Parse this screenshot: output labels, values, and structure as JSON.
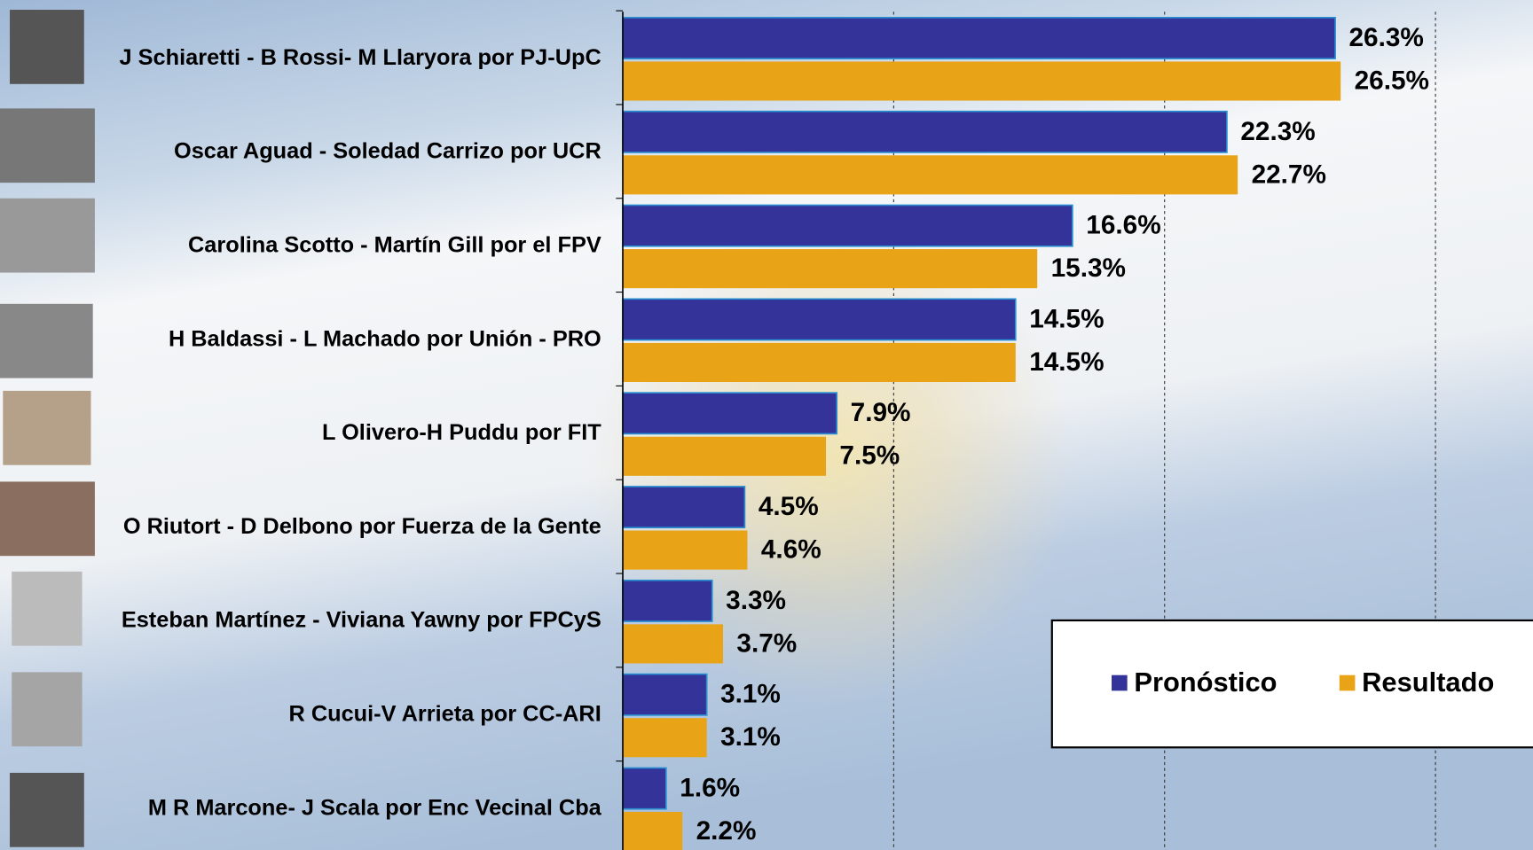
{
  "chart_data": {
    "type": "bar",
    "orientation": "horizontal",
    "categories": [
      "J Schiaretti - B Rossi- M Llaryora por PJ-UpC",
      "Oscar Aguad - Soledad Carrizo por UCR",
      "Carolina Scotto -  Martín Gill por el FPV",
      "H Baldassi - L Machado por Unión - PRO",
      "L Olivero-H Puddu por FIT",
      "O Riutort - D Delbono por Fuerza de la Gente",
      "Esteban Martínez - Viviana Yawny por FPCyS",
      "R Cucui-V Arrieta por CC-ARI",
      "M R Marcone- J Scala por Enc Vecinal Cba"
    ],
    "series": [
      {
        "name": "Pronóstico",
        "color": "#333399",
        "values": [
          26.3,
          22.3,
          16.6,
          14.5,
          7.9,
          4.5,
          3.3,
          3.1,
          1.6
        ],
        "value_labels": [
          "26.3%",
          "22.3%",
          "16.6%",
          "14.5%",
          "7.9%",
          "4.5%",
          "3.3%",
          "3.1%",
          "1.6%"
        ]
      },
      {
        "name": "Resultado",
        "color": "#e8a317",
        "values": [
          26.5,
          22.7,
          15.3,
          14.5,
          7.5,
          4.6,
          3.7,
          3.1,
          2.2
        ],
        "value_labels": [
          "26.5%",
          "22.7%",
          "15.3%",
          "14.5%",
          "7.5%",
          "4.6%",
          "3.7%",
          "3.1%",
          "2.2%"
        ]
      }
    ],
    "xlim": [
      0,
      33.6
    ],
    "xticks": [
      10,
      20,
      30
    ],
    "grid": true,
    "legend": "bottom-right"
  }
}
